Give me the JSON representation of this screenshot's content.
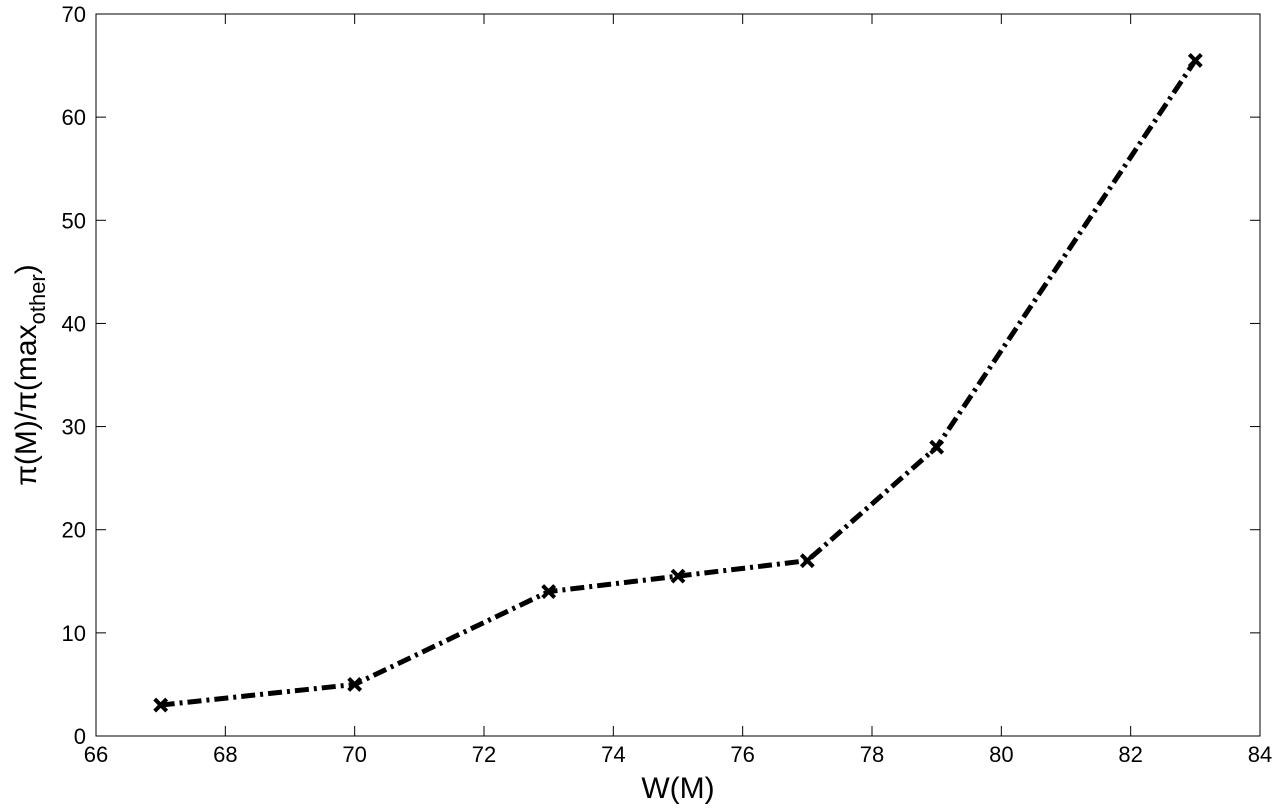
{
  "chart_data": {
    "type": "line",
    "xlabel": "W(M)",
    "ylabel": [
      "π(M)/π(max",
      "other",
      ")"
    ],
    "x": [
      67,
      70,
      73,
      75,
      77,
      79,
      83
    ],
    "series": [
      {
        "color": "#000000",
        "values": [
          3,
          5,
          14,
          15.5,
          17,
          28,
          65.5
        ]
      }
    ],
    "line_style": "dash-dot",
    "marker": "x",
    "xlim": [
      66,
      84
    ],
    "ylim": [
      0,
      70
    ],
    "xticks": [
      66,
      68,
      70,
      72,
      74,
      76,
      78,
      80,
      82,
      84
    ],
    "yticks": [
      0,
      10,
      20,
      30,
      40,
      50,
      60,
      70
    ]
  }
}
